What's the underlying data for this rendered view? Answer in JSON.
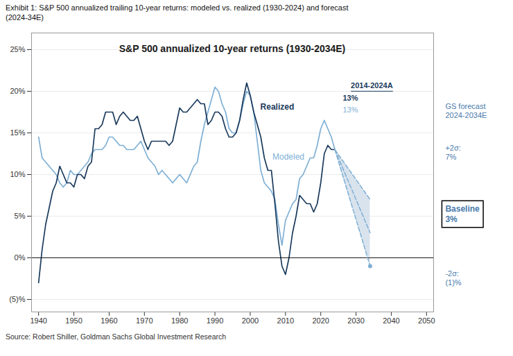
{
  "chart_data": {
    "type": "line",
    "title": "S&P 500 annualized 10-year returns (1930-2034E)",
    "subtitle": "Exhibit 1: S&P 500 annualized trailing 10-year returns: modeled vs. realized (1930-2024) and forecast\n(2024-34E)",
    "caption": "Source: Robert Shiller, Goldman Sachs Global Investment Research",
    "xlim": [
      1938,
      2052
    ],
    "xticks": [
      1940,
      1950,
      1960,
      1970,
      1980,
      1990,
      2000,
      2010,
      2020,
      2030,
      2040,
      2050
    ],
    "ylim": [
      -0.065,
      0.27
    ],
    "yticks": [
      {
        "value": -0.05,
        "label": "(5)%"
      },
      {
        "value": 0.0,
        "label": "0%"
      },
      {
        "value": 0.05,
        "label": "5%"
      },
      {
        "value": 0.1,
        "label": "10%"
      },
      {
        "value": 0.15,
        "label": "15%"
      },
      {
        "value": 0.2,
        "label": "20%"
      },
      {
        "value": 0.25,
        "label": "25%"
      }
    ],
    "grid": true,
    "series": [
      {
        "type": "area",
        "color": "#d0dce8",
        "x": [
          2024,
          2034
        ],
        "values": [
          0.13,
          0.07
        ],
        "lower": [
          0.13,
          -0.01
        ]
      },
      {
        "name": "Modeled",
        "color": "#7eafd4",
        "x": [
          1940,
          1941,
          1942,
          1943,
          1944,
          1945,
          1946,
          1947,
          1948,
          1949,
          1950,
          1951,
          1952,
          1953,
          1954,
          1955,
          1956,
          1957,
          1958,
          1959,
          1960,
          1961,
          1962,
          1963,
          1964,
          1965,
          1966,
          1967,
          1968,
          1969,
          1970,
          1971,
          1972,
          1973,
          1974,
          1975,
          1976,
          1977,
          1978,
          1979,
          1980,
          1981,
          1982,
          1983,
          1984,
          1985,
          1986,
          1987,
          1988,
          1989,
          1990,
          1991,
          1992,
          1993,
          1994,
          1995,
          1996,
          1997,
          1998,
          1999,
          2000,
          2001,
          2002,
          2003,
          2004,
          2005,
          2006,
          2007,
          2008,
          2009,
          2010,
          2011,
          2012,
          2013,
          2014,
          2015,
          2016,
          2017,
          2018,
          2019,
          2020,
          2021,
          2022,
          2023,
          2024
        ],
        "values": [
          0.145,
          0.12,
          0.115,
          0.11,
          0.105,
          0.1,
          0.09,
          0.085,
          0.09,
          0.105,
          0.1,
          0.1,
          0.105,
          0.11,
          0.115,
          0.125,
          0.13,
          0.13,
          0.13,
          0.135,
          0.145,
          0.145,
          0.14,
          0.135,
          0.135,
          0.13,
          0.13,
          0.13,
          0.135,
          0.14,
          0.13,
          0.12,
          0.115,
          0.11,
          0.1,
          0.105,
          0.1,
          0.095,
          0.09,
          0.095,
          0.1,
          0.095,
          0.09,
          0.1,
          0.11,
          0.115,
          0.14,
          0.16,
          0.175,
          0.19,
          0.205,
          0.2,
          0.185,
          0.175,
          0.155,
          0.15,
          0.15,
          0.165,
          0.185,
          0.2,
          0.195,
          0.175,
          0.14,
          0.105,
          0.09,
          0.085,
          0.08,
          0.07,
          0.04,
          0.015,
          0.045,
          0.055,
          0.065,
          0.07,
          0.095,
          0.1,
          0.11,
          0.12,
          0.12,
          0.135,
          0.155,
          0.165,
          0.155,
          0.145,
          0.13
        ]
      },
      {
        "name": "Realized",
        "color": "#1a3a5c",
        "x": [
          1940,
          1941,
          1942,
          1943,
          1944,
          1945,
          1946,
          1947,
          1948,
          1949,
          1950,
          1951,
          1952,
          1953,
          1954,
          1955,
          1956,
          1957,
          1958,
          1959,
          1960,
          1961,
          1962,
          1963,
          1964,
          1965,
          1966,
          1967,
          1968,
          1969,
          1970,
          1971,
          1972,
          1973,
          1974,
          1975,
          1976,
          1977,
          1978,
          1979,
          1980,
          1981,
          1982,
          1983,
          1984,
          1985,
          1986,
          1987,
          1988,
          1989,
          1990,
          1991,
          1992,
          1993,
          1994,
          1995,
          1996,
          1997,
          1998,
          1999,
          2000,
          2001,
          2002,
          2003,
          2004,
          2005,
          2006,
          2007,
          2008,
          2009,
          2010,
          2011,
          2012,
          2013,
          2014,
          2015,
          2016,
          2017,
          2018,
          2019,
          2020,
          2021,
          2022,
          2023,
          2024
        ],
        "values": [
          -0.03,
          0.01,
          0.04,
          0.06,
          0.08,
          0.09,
          0.11,
          0.1,
          0.09,
          0.09,
          0.085,
          0.1,
          0.1,
          0.095,
          0.11,
          0.115,
          0.155,
          0.155,
          0.16,
          0.175,
          0.175,
          0.175,
          0.16,
          0.17,
          0.175,
          0.17,
          0.165,
          0.165,
          0.17,
          0.155,
          0.14,
          0.13,
          0.14,
          0.14,
          0.14,
          0.14,
          0.14,
          0.135,
          0.14,
          0.16,
          0.18,
          0.175,
          0.175,
          0.18,
          0.185,
          0.19,
          0.185,
          0.185,
          0.16,
          0.165,
          0.175,
          0.175,
          0.17,
          0.155,
          0.145,
          0.145,
          0.15,
          0.165,
          0.19,
          0.21,
          0.195,
          0.175,
          0.16,
          0.145,
          0.12,
          0.105,
          0.105,
          0.065,
          0.02,
          -0.01,
          -0.02,
          0.0,
          0.03,
          0.05,
          0.075,
          0.07,
          0.065,
          0.065,
          0.055,
          0.065,
          0.09,
          0.125,
          0.135,
          0.13,
          0.13
        ]
      },
      {
        "color": "#7eafd4",
        "line_style": "dashed",
        "x": [
          2024,
          2034
        ],
        "values": [
          0.13,
          0.03
        ]
      },
      {
        "color": "#7eafd4",
        "line_style": "dashed",
        "x": [
          2024,
          2034
        ],
        "values": [
          0.13,
          0.07
        ]
      },
      {
        "color": "#7eafd4",
        "line_style": "dashed",
        "marker": "circle",
        "x": [
          2024,
          2034
        ],
        "values": [
          0.13,
          -0.01
        ]
      }
    ],
    "annotations": [
      {
        "text": "GS forecast\n2024-2034E",
        "color": "#4a7aab"
      },
      {
        "text": "+2σ:\n7%",
        "color": "#4a7aab"
      },
      {
        "text": "Baseline\n3%",
        "color": "#4a7aab"
      },
      {
        "text": "-2σ:\n(1)%",
        "color": "#4a7aab"
      },
      {
        "text": "2014-2024A",
        "color": "#1a3a5c"
      },
      {
        "text": "13%",
        "color": "#1a3a5c"
      },
      {
        "text": "13%",
        "color": "#7eafd4"
      }
    ]
  }
}
